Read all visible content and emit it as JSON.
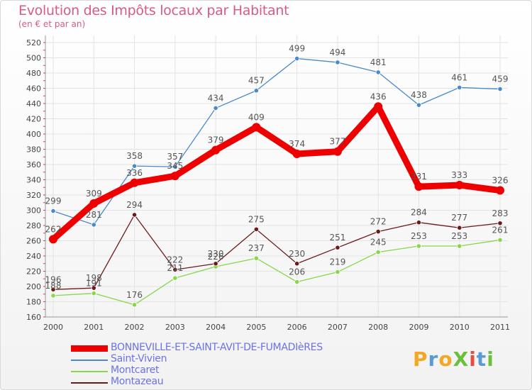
{
  "title": "Evolution des Impôts locaux par Habitant",
  "subtitle": "(en € et par an)",
  "logo": {
    "text": "ProXiti",
    "colors": [
      "#f5a623",
      "#5b9bd5",
      "#f5a623",
      "#6abf3b",
      "#e84c3d",
      "#5b9bd5",
      "#6abf3b"
    ]
  },
  "chart_data": {
    "type": "line",
    "x": [
      "2000",
      "2001",
      "2002",
      "2003",
      "2004",
      "2005",
      "2006",
      "2007",
      "2008",
      "2009",
      "2010",
      "2011"
    ],
    "ylim": [
      160,
      520
    ],
    "yticks": [
      160,
      180,
      200,
      220,
      240,
      260,
      280,
      300,
      320,
      340,
      360,
      380,
      400,
      420,
      440,
      460,
      480,
      500,
      520
    ],
    "grid": true,
    "series": [
      {
        "name": "BONNEVILLE-ET-SAINT-AVIT-DE-FUMADIèRES",
        "color": "#ee0000",
        "values": [
          262,
          309,
          336,
          345,
          379,
          409,
          374,
          377,
          436,
          331,
          333,
          326
        ]
      },
      {
        "name": "Saint-Vivien",
        "color": "#4a8ac9",
        "values": [
          299,
          281,
          358,
          357,
          434,
          457,
          499,
          494,
          481,
          438,
          461,
          459
        ]
      },
      {
        "name": "Montcaret",
        "color": "#88d64a",
        "values": [
          188,
          191,
          176,
          211,
          226,
          237,
          206,
          219,
          245,
          253,
          253,
          261
        ]
      },
      {
        "name": "Montazeau",
        "color": "#6b1a1a",
        "values": [
          196,
          198,
          294,
          222,
          230,
          275,
          230,
          251,
          272,
          284,
          277,
          283
        ]
      }
    ]
  }
}
